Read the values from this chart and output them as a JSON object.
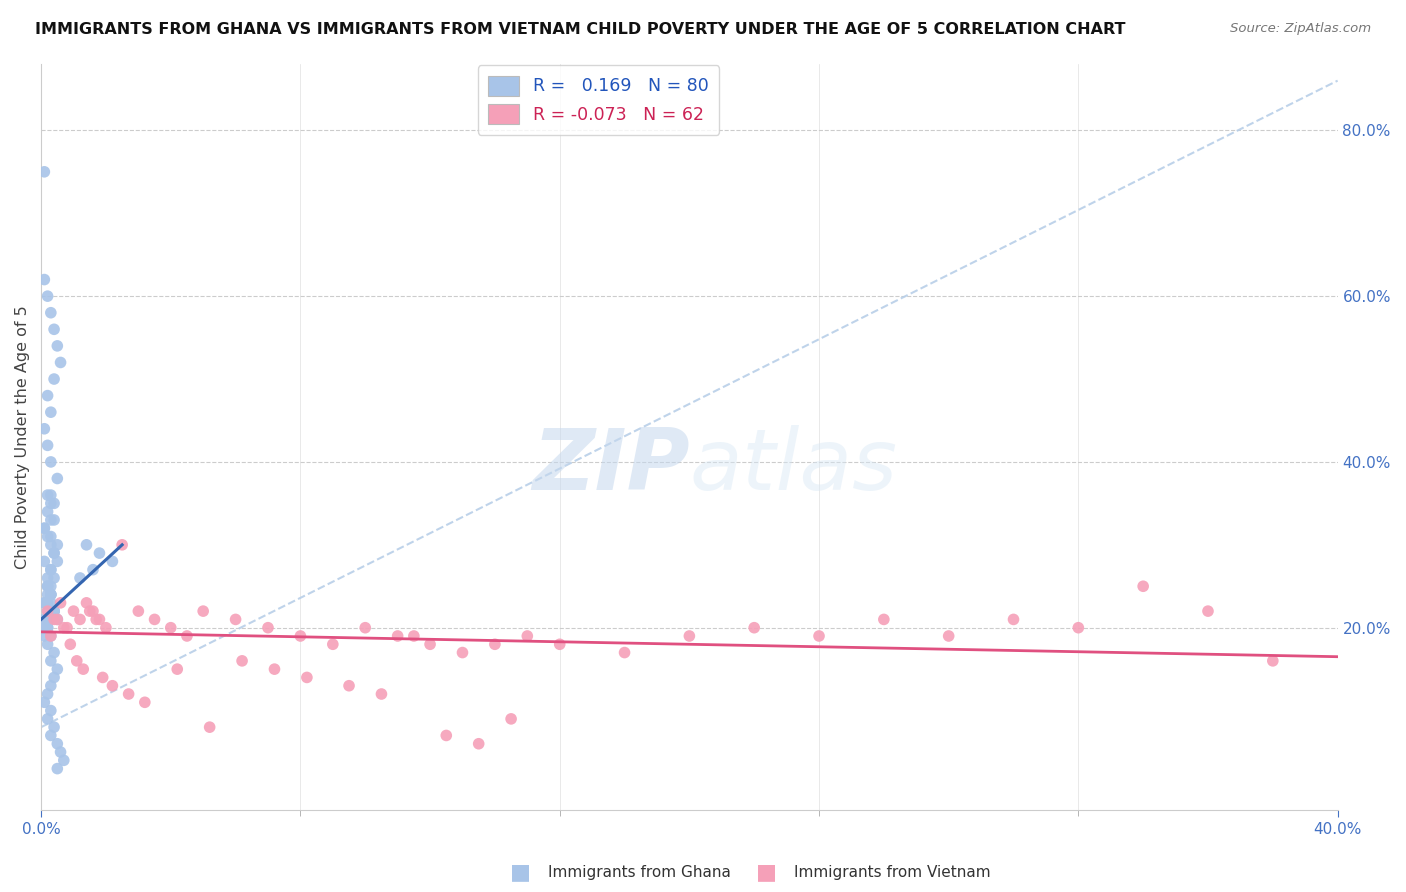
{
  "title": "IMMIGRANTS FROM GHANA VS IMMIGRANTS FROM VIETNAM CHILD POVERTY UNDER THE AGE OF 5 CORRELATION CHART",
  "source": "Source: ZipAtlas.com",
  "ylabel": "Child Poverty Under the Age of 5",
  "ylabel_right_vals": [
    0.2,
    0.4,
    0.6,
    0.8
  ],
  "ghana_color": "#a8c4e8",
  "vietnam_color": "#f5a0b8",
  "ghana_line_color": "#3465b0",
  "vietnam_line_color": "#e05080",
  "dashed_line_color": "#b8cfe8",
  "watermark_color": "#d0dff0",
  "xlim": [
    0.0,
    0.4
  ],
  "ylim": [
    -0.02,
    0.88
  ],
  "x_ticks": [
    0.0,
    0.4
  ],
  "ghana_scatter_x": [
    0.001,
    0.002,
    0.001,
    0.003,
    0.002,
    0.001,
    0.003,
    0.002,
    0.004,
    0.002,
    0.003,
    0.001,
    0.002,
    0.001,
    0.003,
    0.004,
    0.005,
    0.003,
    0.002,
    0.001,
    0.004,
    0.003,
    0.002,
    0.005,
    0.003,
    0.002,
    0.001,
    0.003,
    0.002,
    0.004,
    0.006,
    0.005,
    0.004,
    0.003,
    0.002,
    0.001,
    0.003,
    0.002,
    0.004,
    0.003,
    0.005,
    0.004,
    0.003,
    0.002,
    0.001,
    0.003,
    0.002,
    0.004,
    0.003,
    0.005,
    0.006,
    0.007,
    0.005,
    0.004,
    0.003,
    0.002,
    0.001,
    0.003,
    0.002,
    0.004,
    0.003,
    0.005,
    0.004,
    0.003,
    0.002,
    0.001,
    0.003,
    0.002,
    0.004,
    0.003,
    0.005,
    0.004,
    0.003,
    0.002,
    0.001,
    0.014,
    0.018,
    0.022,
    0.016,
    0.012
  ],
  "ghana_scatter_y": [
    0.21,
    0.22,
    0.23,
    0.24,
    0.2,
    0.19,
    0.25,
    0.21,
    0.22,
    0.23,
    0.24,
    0.2,
    0.26,
    0.28,
    0.27,
    0.29,
    0.3,
    0.31,
    0.25,
    0.32,
    0.33,
    0.35,
    0.36,
    0.38,
    0.4,
    0.42,
    0.44,
    0.46,
    0.48,
    0.5,
    0.52,
    0.54,
    0.56,
    0.58,
    0.6,
    0.62,
    0.19,
    0.18,
    0.17,
    0.16,
    0.15,
    0.14,
    0.13,
    0.12,
    0.11,
    0.1,
    0.09,
    0.08,
    0.07,
    0.06,
    0.05,
    0.04,
    0.03,
    0.22,
    0.21,
    0.2,
    0.23,
    0.24,
    0.25,
    0.26,
    0.27,
    0.28,
    0.29,
    0.3,
    0.31,
    0.32,
    0.33,
    0.34,
    0.35,
    0.36,
    0.21,
    0.22,
    0.23,
    0.24,
    0.75,
    0.3,
    0.29,
    0.28,
    0.27,
    0.26
  ],
  "vietnam_scatter_x": [
    0.002,
    0.004,
    0.006,
    0.008,
    0.01,
    0.012,
    0.014,
    0.016,
    0.018,
    0.02,
    0.025,
    0.03,
    0.035,
    0.04,
    0.045,
    0.05,
    0.06,
    0.07,
    0.08,
    0.09,
    0.1,
    0.11,
    0.12,
    0.13,
    0.14,
    0.15,
    0.16,
    0.18,
    0.2,
    0.22,
    0.24,
    0.26,
    0.28,
    0.3,
    0.32,
    0.34,
    0.36,
    0.38,
    0.003,
    0.005,
    0.007,
    0.009,
    0.011,
    0.013,
    0.015,
    0.017,
    0.019,
    0.022,
    0.027,
    0.032,
    0.042,
    0.052,
    0.062,
    0.072,
    0.082,
    0.095,
    0.105,
    0.115,
    0.125,
    0.135,
    0.145
  ],
  "vietnam_scatter_y": [
    0.22,
    0.21,
    0.23,
    0.2,
    0.22,
    0.21,
    0.23,
    0.22,
    0.21,
    0.2,
    0.3,
    0.22,
    0.21,
    0.2,
    0.19,
    0.22,
    0.21,
    0.2,
    0.19,
    0.18,
    0.2,
    0.19,
    0.18,
    0.17,
    0.18,
    0.19,
    0.18,
    0.17,
    0.19,
    0.2,
    0.19,
    0.21,
    0.19,
    0.21,
    0.2,
    0.25,
    0.22,
    0.16,
    0.19,
    0.21,
    0.2,
    0.18,
    0.16,
    0.15,
    0.22,
    0.21,
    0.14,
    0.13,
    0.12,
    0.11,
    0.15,
    0.08,
    0.16,
    0.15,
    0.14,
    0.13,
    0.12,
    0.19,
    0.07,
    0.06,
    0.09
  ],
  "ghana_trend_x": [
    0.0,
    0.025
  ],
  "ghana_trend_y": [
    0.21,
    0.3
  ],
  "vietnam_trend_x": [
    0.0,
    0.4
  ],
  "vietnam_trend_y": [
    0.195,
    0.165
  ],
  "dashed_line_x": [
    0.0,
    0.4
  ],
  "dashed_line_y": [
    0.08,
    0.86
  ]
}
